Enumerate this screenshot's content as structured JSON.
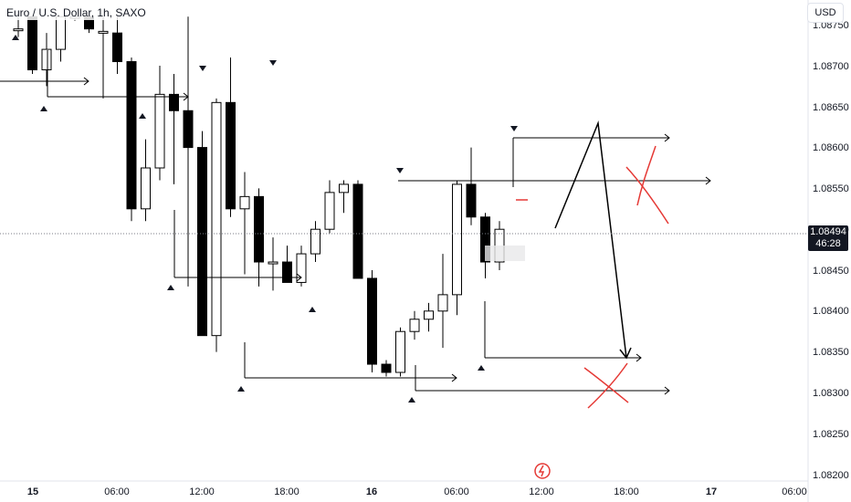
{
  "header": {
    "symbol_title": "Euro / U.S. Dollar, 1h, SAXO",
    "currency_label": "USD"
  },
  "price_axis": {
    "labels": [
      "1.08750",
      "1.08700",
      "1.08650",
      "1.08600",
      "1.08550",
      "1.08500",
      "1.08450",
      "1.08400",
      "1.08350",
      "1.08300",
      "1.08250",
      "1.08200"
    ]
  },
  "current_price": {
    "value": "1.08494",
    "countdown": "46:28",
    "tag_color": "#131722"
  },
  "time_axis": {
    "labels": [
      "15",
      "06:00",
      "12:00",
      "18:00",
      "16",
      "06:00",
      "12:00",
      "18:00",
      "17",
      "06:00"
    ]
  },
  "chart_data": {
    "type": "candlestick",
    "ylim": [
      1.0819,
      1.0876
    ],
    "series": [
      {
        "o": 1.08745,
        "h": 1.0876,
        "l": 1.08735,
        "c": 1.08745
      },
      {
        "o": 1.0876,
        "h": 1.0876,
        "l": 1.0869,
        "c": 1.08695
      },
      {
        "o": 1.08695,
        "h": 1.0874,
        "l": 1.08675,
        "c": 1.0872
      },
      {
        "o": 1.0872,
        "h": 1.0876,
        "l": 1.08705,
        "c": 1.0876
      },
      {
        "o": 1.0876,
        "h": 1.0876,
        "l": 1.08755,
        "c": 1.0876
      },
      {
        "o": 1.0876,
        "h": 1.0876,
        "l": 1.0874,
        "c": 1.08745
      },
      {
        "o": 1.08742,
        "h": 1.0876,
        "l": 1.0866,
        "c": 1.08742
      },
      {
        "o": 1.0874,
        "h": 1.0876,
        "l": 1.0869,
        "c": 1.08705
      },
      {
        "o": 1.08705,
        "h": 1.0871,
        "l": 1.0851,
        "c": 1.08525
      },
      {
        "o": 1.08525,
        "h": 1.0861,
        "l": 1.0851,
        "c": 1.08575
      },
      {
        "o": 1.08575,
        "h": 1.087,
        "l": 1.0856,
        "c": 1.08665
      },
      {
        "o": 1.08665,
        "h": 1.0869,
        "l": 1.08555,
        "c": 1.08645
      },
      {
        "o": 1.08645,
        "h": 1.0876,
        "l": 1.0843,
        "c": 1.086
      },
      {
        "o": 1.086,
        "h": 1.0862,
        "l": 1.0837,
        "c": 1.0837
      },
      {
        "o": 1.0837,
        "h": 1.0866,
        "l": 1.0835,
        "c": 1.08655
      },
      {
        "o": 1.08655,
        "h": 1.0871,
        "l": 1.08515,
        "c": 1.08525
      },
      {
        "o": 1.08525,
        "h": 1.0857,
        "l": 1.08445,
        "c": 1.0854
      },
      {
        "o": 1.0854,
        "h": 1.0855,
        "l": 1.0843,
        "c": 1.0846
      },
      {
        "o": 1.0846,
        "h": 1.0849,
        "l": 1.08425,
        "c": 1.0846
      },
      {
        "o": 1.0846,
        "h": 1.0848,
        "l": 1.08435,
        "c": 1.08435
      },
      {
        "o": 1.08435,
        "h": 1.0848,
        "l": 1.0843,
        "c": 1.0847
      },
      {
        "o": 1.0847,
        "h": 1.0851,
        "l": 1.0846,
        "c": 1.085
      },
      {
        "o": 1.085,
        "h": 1.0856,
        "l": 1.08495,
        "c": 1.08545
      },
      {
        "o": 1.08545,
        "h": 1.0856,
        "l": 1.0852,
        "c": 1.08555
      },
      {
        "o": 1.08555,
        "h": 1.0856,
        "l": 1.0844,
        "c": 1.0844
      },
      {
        "o": 1.0844,
        "h": 1.0845,
        "l": 1.08325,
        "c": 1.08335
      },
      {
        "o": 1.08335,
        "h": 1.0834,
        "l": 1.0832,
        "c": 1.08325
      },
      {
        "o": 1.08325,
        "h": 1.0838,
        "l": 1.0832,
        "c": 1.08375
      },
      {
        "o": 1.08375,
        "h": 1.084,
        "l": 1.08365,
        "c": 1.0839
      },
      {
        "o": 1.0839,
        "h": 1.0841,
        "l": 1.08375,
        "c": 1.084
      },
      {
        "o": 1.084,
        "h": 1.0847,
        "l": 1.08355,
        "c": 1.0842
      },
      {
        "o": 1.0842,
        "h": 1.0856,
        "l": 1.08395,
        "c": 1.08555
      },
      {
        "o": 1.08555,
        "h": 1.086,
        "l": 1.08505,
        "c": 1.08515
      },
      {
        "o": 1.08515,
        "h": 1.0852,
        "l": 1.0844,
        "c": 1.0846
      },
      {
        "o": 1.0846,
        "h": 1.0851,
        "l": 1.0845,
        "c": 1.085
      }
    ],
    "colors": {
      "up": "#ffffff",
      "down": "#000000",
      "wick": "#000000",
      "annotation_red": "#e53935"
    }
  }
}
